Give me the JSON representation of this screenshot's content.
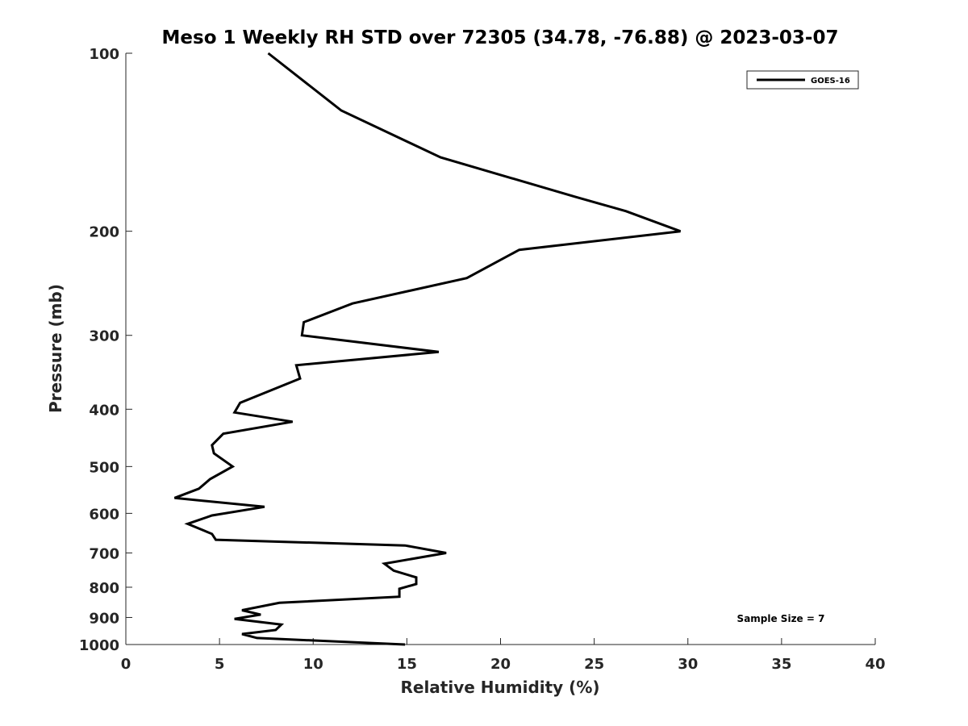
{
  "chart_data": {
    "type": "line",
    "title": "Meso 1 Weekly RH STD over 72305 (34.78, -76.88) @ 2023-03-07",
    "xlabel": "Relative Humidity (%)",
    "ylabel": "Pressure (mb)",
    "xlim": [
      0,
      40
    ],
    "ylim": [
      100,
      1000
    ],
    "y_scale": "log",
    "y_reversed": true,
    "x_ticks": [
      0,
      5,
      10,
      15,
      20,
      25,
      30,
      35,
      40
    ],
    "y_ticks": [
      100,
      200,
      300,
      400,
      500,
      600,
      700,
      800,
      900,
      1000
    ],
    "grid": false,
    "legend_position": "top-right",
    "annotation": "Sample Size = 7",
    "series": [
      {
        "name": "GOES-16",
        "color": "#000000",
        "points": [
          [
            7.6,
            100
          ],
          [
            11.5,
            125
          ],
          [
            16.8,
            150
          ],
          [
            24.0,
            175
          ],
          [
            26.7,
            185
          ],
          [
            29.6,
            200
          ],
          [
            21.0,
            215
          ],
          [
            18.2,
            240
          ],
          [
            12.1,
            265
          ],
          [
            9.5,
            285
          ],
          [
            9.4,
            300
          ],
          [
            16.7,
            320
          ],
          [
            9.1,
            337
          ],
          [
            9.3,
            355
          ],
          [
            6.1,
            390
          ],
          [
            5.8,
            405
          ],
          [
            8.9,
            420
          ],
          [
            5.2,
            440
          ],
          [
            4.6,
            460
          ],
          [
            4.7,
            475
          ],
          [
            5.7,
            500
          ],
          [
            4.5,
            525
          ],
          [
            3.9,
            545
          ],
          [
            2.6,
            565
          ],
          [
            7.4,
            585
          ],
          [
            4.6,
            605
          ],
          [
            3.3,
            625
          ],
          [
            4.6,
            650
          ],
          [
            4.8,
            665
          ],
          [
            14.9,
            680
          ],
          [
            17.1,
            700
          ],
          [
            13.8,
            730
          ],
          [
            14.3,
            750
          ],
          [
            15.5,
            770
          ],
          [
            15.5,
            790
          ],
          [
            14.6,
            805
          ],
          [
            14.6,
            830
          ],
          [
            8.2,
            850
          ],
          [
            6.2,
            875
          ],
          [
            7.2,
            890
          ],
          [
            5.8,
            905
          ],
          [
            8.3,
            925
          ],
          [
            8.0,
            945
          ],
          [
            6.2,
            960
          ],
          [
            7.0,
            975
          ],
          [
            14.9,
            1000
          ]
        ]
      }
    ]
  }
}
